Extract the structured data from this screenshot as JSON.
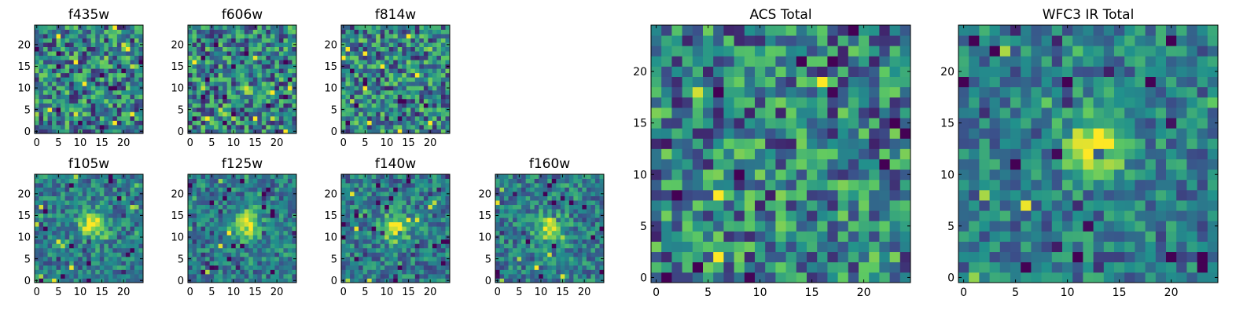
{
  "figure": {
    "colormap": "viridis",
    "colormap_stops": [
      "#440154",
      "#3b528b",
      "#21918c",
      "#5ec962",
      "#fde725"
    ]
  },
  "chart_data": [
    {
      "type": "heatmap",
      "title": "f435w",
      "grid_size": 25,
      "xticks": [
        0,
        5,
        10,
        15,
        20
      ],
      "yticks": [
        0,
        5,
        10,
        15,
        20
      ],
      "source_peak": false,
      "seed": 11
    },
    {
      "type": "heatmap",
      "title": "f606w",
      "grid_size": 25,
      "xticks": [
        0,
        5,
        10,
        15,
        20
      ],
      "yticks": [
        0,
        5,
        10,
        15,
        20
      ],
      "source_peak": false,
      "seed": 23
    },
    {
      "type": "heatmap",
      "title": "f814w",
      "grid_size": 25,
      "xticks": [
        0,
        5,
        10,
        15,
        20
      ],
      "yticks": [
        0,
        5,
        10,
        15,
        20
      ],
      "source_peak": false,
      "seed": 37
    },
    {
      "type": "heatmap",
      "title": "f105w",
      "grid_size": 25,
      "xticks": [
        0,
        5,
        10,
        15,
        20
      ],
      "yticks": [
        0,
        5,
        10,
        15,
        20
      ],
      "source_peak": true,
      "peak_center": [
        13,
        13
      ],
      "seed": 41
    },
    {
      "type": "heatmap",
      "title": "f125w",
      "grid_size": 25,
      "xticks": [
        0,
        5,
        10,
        15,
        20
      ],
      "yticks": [
        0,
        5,
        10,
        15,
        20
      ],
      "source_peak": true,
      "peak_center": [
        13,
        13
      ],
      "seed": 53
    },
    {
      "type": "heatmap",
      "title": "f140w",
      "grid_size": 25,
      "xticks": [
        0,
        5,
        10,
        15,
        20
      ],
      "yticks": [
        0,
        5,
        10,
        15,
        20
      ],
      "source_peak": true,
      "peak_center": [
        12,
        12
      ],
      "seed": 67
    },
    {
      "type": "heatmap",
      "title": "f160w",
      "grid_size": 25,
      "xticks": [
        0,
        5,
        10,
        15,
        20
      ],
      "yticks": [
        0,
        5,
        10,
        15,
        20
      ],
      "source_peak": true,
      "peak_center": [
        12,
        12
      ],
      "seed": 79
    },
    {
      "type": "heatmap",
      "title": "ACS Total",
      "grid_size": 25,
      "xticks": [
        0,
        5,
        10,
        15,
        20
      ],
      "yticks": [
        0,
        5,
        10,
        15,
        20
      ],
      "source_peak": false,
      "seed": 97
    },
    {
      "type": "heatmap",
      "title": "WFC3 IR Total",
      "grid_size": 25,
      "xticks": [
        0,
        5,
        10,
        15,
        20
      ],
      "yticks": [
        0,
        5,
        10,
        15,
        20
      ],
      "source_peak": true,
      "peak_center": [
        13,
        13
      ],
      "seed": 103
    }
  ]
}
